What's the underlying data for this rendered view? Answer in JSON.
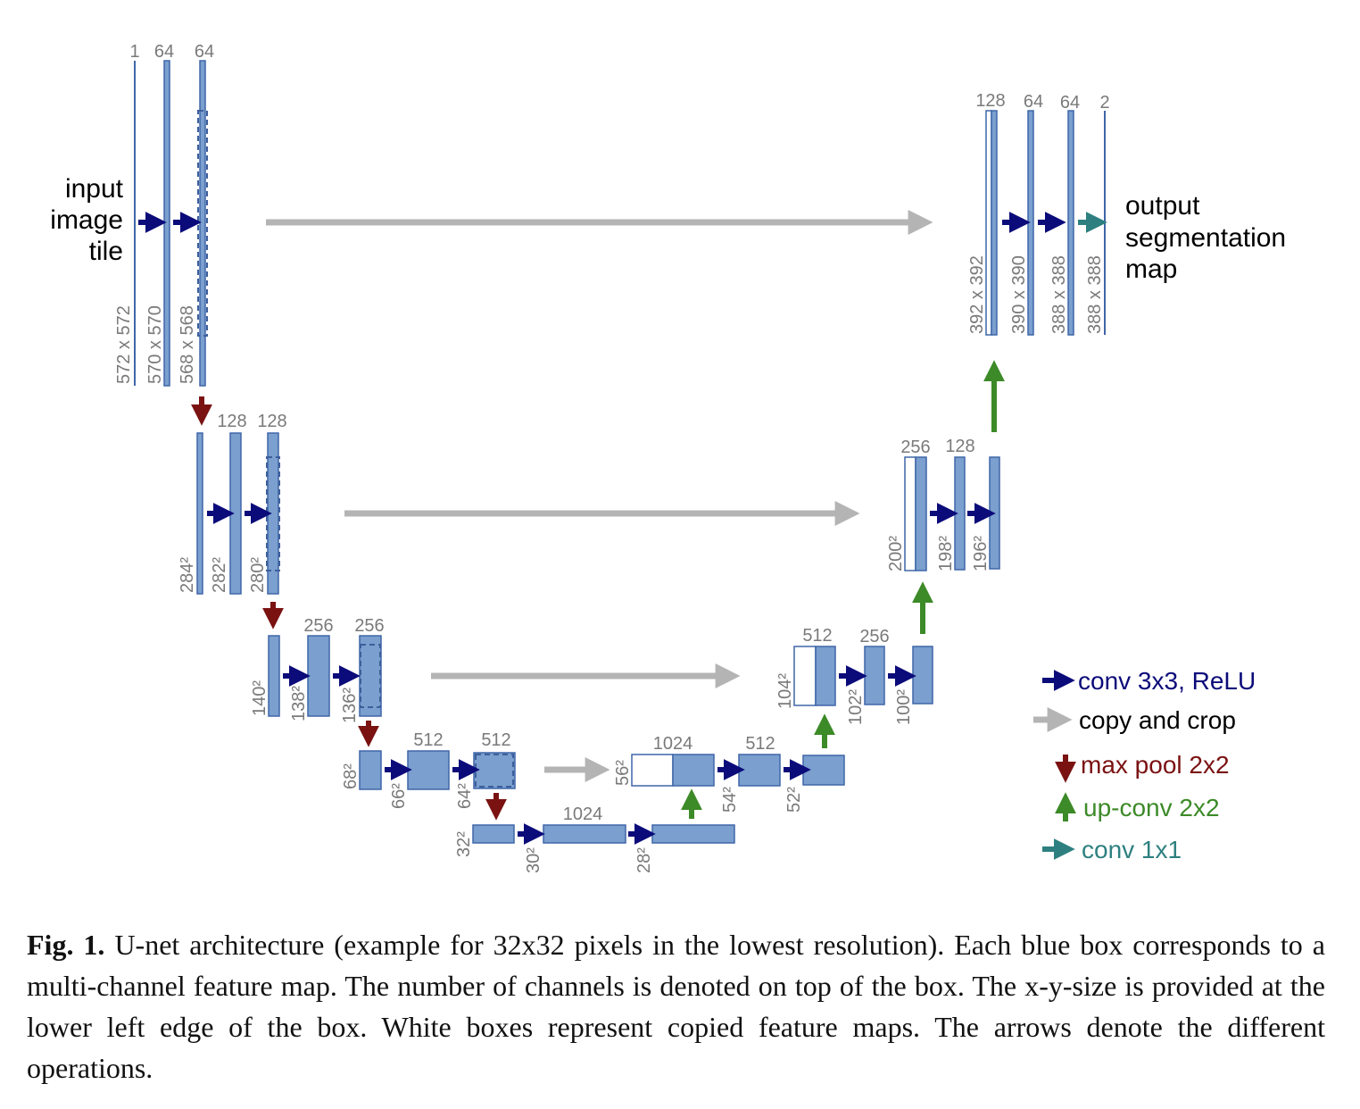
{
  "labels": {
    "input": [
      "input",
      "image",
      "tile"
    ],
    "output": [
      "output",
      "segmentation",
      "map"
    ]
  },
  "channels": {
    "l1": [
      "1",
      "64",
      "64"
    ],
    "l2": [
      "128",
      "128"
    ],
    "l3": [
      "256",
      "256"
    ],
    "l4": [
      "512",
      "512"
    ],
    "bottom": "1024",
    "u4": [
      "1024",
      "512"
    ],
    "u3": [
      "512",
      "256"
    ],
    "u2": [
      "256",
      "128"
    ],
    "u1": [
      "128",
      "64",
      "64",
      "2"
    ]
  },
  "sizes": {
    "l1": [
      "572 x 572",
      "570 x 570",
      "568 x 568"
    ],
    "l2": [
      "284²",
      "282²",
      "280²"
    ],
    "l3": [
      "140²",
      "138²",
      "136²"
    ],
    "l4": [
      "68²",
      "66²",
      "64²"
    ],
    "bottom": [
      "32²",
      "30²",
      "28²"
    ],
    "u4": [
      "56²",
      "54²",
      "52²"
    ],
    "u3": [
      "104²",
      "102²",
      "100²"
    ],
    "u2": [
      "200²",
      "198²",
      "196²"
    ],
    "u1": [
      "392 x 392",
      "390 x 390",
      "388 x 388",
      "388 x 388"
    ]
  },
  "legend": {
    "conv": "conv 3x3, ReLU",
    "copy": "copy and crop",
    "pool": "max pool 2x2",
    "upconv": "up-conv 2x2",
    "conv1": "conv 1x1"
  },
  "colors": {
    "conv": "#0b0b7a",
    "copy": "#b4b4b4",
    "pool": "#7a1212",
    "upconv": "#3c8a28",
    "conv1": "#2e8080",
    "feature": "#7b9fce"
  },
  "caption": {
    "prefix": "Fig. 1.",
    "text": "U-net architecture (example for 32x32 pixels in the lowest resolution). Each blue box corresponds to a multi-channel feature map. The number of channels is denoted on top of the box. The x-y-size is provided at the lower left edge of the box. White boxes represent copied feature maps. The arrows denote the different operations."
  }
}
